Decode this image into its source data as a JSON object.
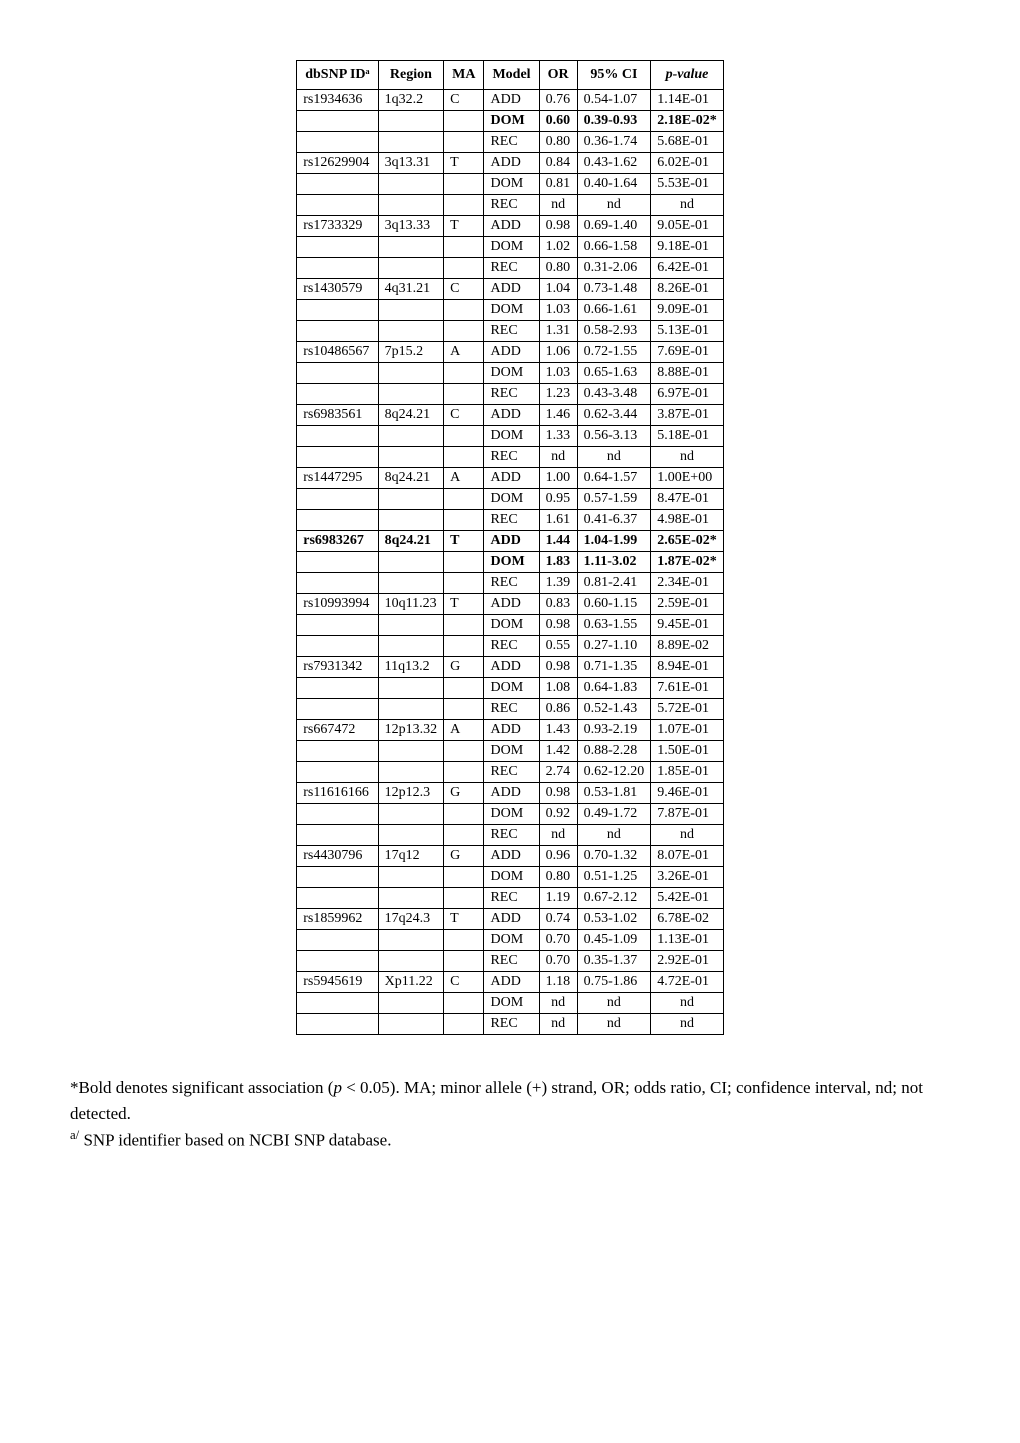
{
  "table": {
    "headers": [
      "dbSNP IDᵃ",
      "Region",
      "MA",
      "Model",
      "OR",
      "95% CI",
      "p-value"
    ],
    "header_italic": [
      false,
      false,
      false,
      false,
      false,
      false,
      true
    ],
    "rows": [
      {
        "snp": "rs1934636",
        "region": "1q32.2",
        "ma": "C",
        "model": "ADD",
        "or": "0.76",
        "ci": "0.54-1.07",
        "p": "1.14E-01",
        "bold": false
      },
      {
        "snp": "",
        "region": "",
        "ma": "",
        "model": "DOM",
        "or": "0.60",
        "ci": "0.39-0.93",
        "p": "2.18E-02*",
        "bold": true
      },
      {
        "snp": "",
        "region": "",
        "ma": "",
        "model": "REC",
        "or": "0.80",
        "ci": "0.36-1.74",
        "p": "5.68E-01",
        "bold": false
      },
      {
        "snp": "rs12629904",
        "region": "3q13.31",
        "ma": "T",
        "model": "ADD",
        "or": "0.84",
        "ci": "0.43-1.62",
        "p": "6.02E-01",
        "bold": false
      },
      {
        "snp": "",
        "region": "",
        "ma": "",
        "model": "DOM",
        "or": "0.81",
        "ci": "0.40-1.64",
        "p": "5.53E-01",
        "bold": false
      },
      {
        "snp": "",
        "region": "",
        "ma": "",
        "model": "REC",
        "or": "nd",
        "ci": "nd",
        "p": "nd",
        "bold": false,
        "center_or": true,
        "center_ci": true,
        "center_p": true
      },
      {
        "snp": "rs1733329",
        "region": "3q13.33",
        "ma": "T",
        "model": "ADD",
        "or": "0.98",
        "ci": "0.69-1.40",
        "p": "9.05E-01",
        "bold": false
      },
      {
        "snp": "",
        "region": "",
        "ma": "",
        "model": "DOM",
        "or": "1.02",
        "ci": "0.66-1.58",
        "p": "9.18E-01",
        "bold": false
      },
      {
        "snp": "",
        "region": "",
        "ma": "",
        "model": "REC",
        "or": "0.80",
        "ci": "0.31-2.06",
        "p": "6.42E-01",
        "bold": false
      },
      {
        "snp": "rs1430579",
        "region": "4q31.21",
        "ma": "C",
        "model": "ADD",
        "or": "1.04",
        "ci": "0.73-1.48",
        "p": "8.26E-01",
        "bold": false
      },
      {
        "snp": "",
        "region": "",
        "ma": "",
        "model": "DOM",
        "or": "1.03",
        "ci": "0.66-1.61",
        "p": "9.09E-01",
        "bold": false
      },
      {
        "snp": "",
        "region": "",
        "ma": "",
        "model": "REC",
        "or": "1.31",
        "ci": "0.58-2.93",
        "p": "5.13E-01",
        "bold": false
      },
      {
        "snp": "rs10486567",
        "region": "7p15.2",
        "ma": "A",
        "model": "ADD",
        "or": "1.06",
        "ci": "0.72-1.55",
        "p": "7.69E-01",
        "bold": false
      },
      {
        "snp": "",
        "region": "",
        "ma": "",
        "model": "DOM",
        "or": "1.03",
        "ci": "0.65-1.63",
        "p": "8.88E-01",
        "bold": false
      },
      {
        "snp": "",
        "region": "",
        "ma": "",
        "model": "REC",
        "or": "1.23",
        "ci": "0.43-3.48",
        "p": "6.97E-01",
        "bold": false
      },
      {
        "snp": "rs6983561",
        "region": "8q24.21",
        "ma": "C",
        "model": "ADD",
        "or": "1.46",
        "ci": "0.62-3.44",
        "p": "3.87E-01",
        "bold": false
      },
      {
        "snp": "",
        "region": "",
        "ma": "",
        "model": "DOM",
        "or": "1.33",
        "ci": "0.56-3.13",
        "p": "5.18E-01",
        "bold": false
      },
      {
        "snp": "",
        "region": "",
        "ma": "",
        "model": "REC",
        "or": "nd",
        "ci": "nd",
        "p": "nd",
        "bold": false,
        "center_or": true,
        "center_ci": true,
        "center_p": true
      },
      {
        "snp": "rs1447295",
        "region": "8q24.21",
        "ma": "A",
        "model": "ADD",
        "or": "1.00",
        "ci": "0.64-1.57",
        "p": "1.00E+00",
        "bold": false
      },
      {
        "snp": "",
        "region": "",
        "ma": "",
        "model": "DOM",
        "or": "0.95",
        "ci": "0.57-1.59",
        "p": "8.47E-01",
        "bold": false
      },
      {
        "snp": "",
        "region": "",
        "ma": "",
        "model": "REC",
        "or": "1.61",
        "ci": "0.41-6.37",
        "p": "4.98E-01",
        "bold": false
      },
      {
        "snp": "rs6983267",
        "region": "8q24.21",
        "ma": "T",
        "model": "ADD",
        "or": "1.44",
        "ci": "1.04-1.99",
        "p": "2.65E-02*",
        "bold": true
      },
      {
        "snp": "",
        "region": "",
        "ma": "",
        "model": "DOM",
        "or": "1.83",
        "ci": "1.11-3.02",
        "p": "1.87E-02*",
        "bold": true
      },
      {
        "snp": "",
        "region": "",
        "ma": "",
        "model": "REC",
        "or": "1.39",
        "ci": "0.81-2.41",
        "p": "2.34E-01",
        "bold": false
      },
      {
        "snp": "rs10993994",
        "region": "10q11.23",
        "ma": "T",
        "model": "ADD",
        "or": "0.83",
        "ci": "0.60-1.15",
        "p": "2.59E-01",
        "bold": false
      },
      {
        "snp": "",
        "region": "",
        "ma": "",
        "model": "DOM",
        "or": "0.98",
        "ci": "0.63-1.55",
        "p": "9.45E-01",
        "bold": false
      },
      {
        "snp": "",
        "region": "",
        "ma": "",
        "model": "REC",
        "or": "0.55",
        "ci": "0.27-1.10",
        "p": "8.89E-02",
        "bold": false
      },
      {
        "snp": "rs7931342",
        "region": "11q13.2",
        "ma": "G",
        "model": "ADD",
        "or": "0.98",
        "ci": "0.71-1.35",
        "p": "8.94E-01",
        "bold": false
      },
      {
        "snp": "",
        "region": "",
        "ma": "",
        "model": "DOM",
        "or": "1.08",
        "ci": "0.64-1.83",
        "p": "7.61E-01",
        "bold": false
      },
      {
        "snp": "",
        "region": "",
        "ma": "",
        "model": "REC",
        "or": "0.86",
        "ci": "0.52-1.43",
        "p": "5.72E-01",
        "bold": false
      },
      {
        "snp": "rs667472",
        "region": "12p13.32",
        "ma": "A",
        "model": "ADD",
        "or": "1.43",
        "ci": "0.93-2.19",
        "p": "1.07E-01",
        "bold": false
      },
      {
        "snp": "",
        "region": "",
        "ma": "",
        "model": "DOM",
        "or": "1.42",
        "ci": "0.88-2.28",
        "p": "1.50E-01",
        "bold": false
      },
      {
        "snp": "",
        "region": "",
        "ma": "",
        "model": "REC",
        "or": "2.74",
        "ci": "0.62-12.20",
        "p": "1.85E-01",
        "bold": false
      },
      {
        "snp": "rs11616166",
        "region": "12p12.3",
        "ma": "G",
        "model": "ADD",
        "or": "0.98",
        "ci": "0.53-1.81",
        "p": "9.46E-01",
        "bold": false
      },
      {
        "snp": "",
        "region": "",
        "ma": "",
        "model": "DOM",
        "or": "0.92",
        "ci": "0.49-1.72",
        "p": "7.87E-01",
        "bold": false
      },
      {
        "snp": "",
        "region": "",
        "ma": "",
        "model": "REC",
        "or": "nd",
        "ci": "nd",
        "p": "nd",
        "bold": false,
        "center_or": true,
        "center_ci": true,
        "center_p": true
      },
      {
        "snp": "rs4430796",
        "region": "17q12",
        "ma": "G",
        "model": "ADD",
        "or": "0.96",
        "ci": "0.70-1.32",
        "p": "8.07E-01",
        "bold": false
      },
      {
        "snp": "",
        "region": "",
        "ma": "",
        "model": "DOM",
        "or": "0.80",
        "ci": "0.51-1.25",
        "p": "3.26E-01",
        "bold": false
      },
      {
        "snp": "",
        "region": "",
        "ma": "",
        "model": "REC",
        "or": "1.19",
        "ci": "0.67-2.12",
        "p": "5.42E-01",
        "bold": false
      },
      {
        "snp": "rs1859962",
        "region": "17q24.3",
        "ma": "T",
        "model": "ADD",
        "or": "0.74",
        "ci": "0.53-1.02",
        "p": "6.78E-02",
        "bold": false
      },
      {
        "snp": "",
        "region": "",
        "ma": "",
        "model": "DOM",
        "or": "0.70",
        "ci": "0.45-1.09",
        "p": "1.13E-01",
        "bold": false
      },
      {
        "snp": "",
        "region": "",
        "ma": "",
        "model": "REC",
        "or": "0.70",
        "ci": "0.35-1.37",
        "p": "2.92E-01",
        "bold": false
      },
      {
        "snp": "rs5945619",
        "region": "Xp11.22",
        "ma": "C",
        "model": "ADD",
        "or": "1.18",
        "ci": "0.75-1.86",
        "p": "4.72E-01",
        "bold": false
      },
      {
        "snp": "",
        "region": "",
        "ma": "",
        "model": "DOM",
        "or": "nd",
        "ci": "nd",
        "p": "nd",
        "bold": false,
        "center_or": true,
        "center_ci": true,
        "center_p": true
      },
      {
        "snp": "",
        "region": "",
        "ma": "",
        "model": "REC",
        "or": "nd",
        "ci": "nd",
        "p": "nd",
        "bold": false,
        "center_or": true,
        "center_ci": true,
        "center_p": true
      }
    ]
  },
  "footnote": {
    "line1_pre": "*Bold denotes significant association (",
    "line1_p": "p",
    "line1_post": " < 0.05). MA; minor allele (+) strand, OR; odds ratio, CI; confidence interval, nd; not detected.",
    "line2_sup": "a/",
    "line2": " SNP identifier based on NCBI SNP database."
  }
}
